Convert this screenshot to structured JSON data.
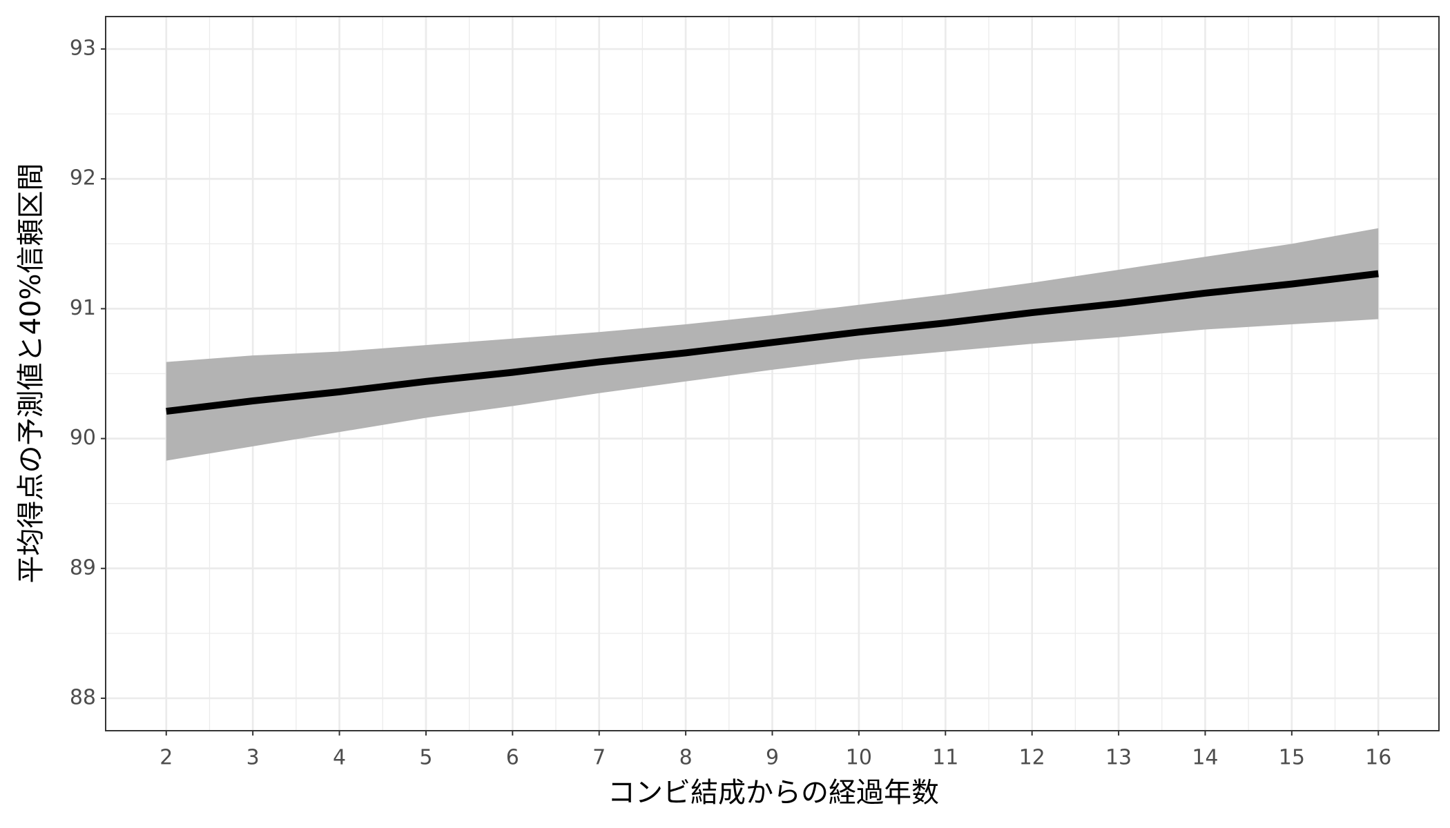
{
  "chart_data": {
    "type": "line",
    "x_label": "コンビ結成からの経過年数",
    "y_label": "平均得点の予測値と40%信頼区間",
    "x": [
      2,
      3,
      4,
      5,
      6,
      7,
      8,
      9,
      10,
      11,
      12,
      13,
      14,
      15,
      16
    ],
    "series": [
      {
        "name": "fit",
        "color": "#000000",
        "values": [
          90.21,
          90.29,
          90.36,
          90.44,
          90.51,
          90.59,
          90.66,
          90.74,
          90.82,
          90.89,
          90.97,
          91.04,
          91.12,
          91.19,
          91.27
        ]
      },
      {
        "name": "lower",
        "color": "#b3b3b3",
        "values": [
          89.83,
          89.94,
          90.05,
          90.16,
          90.25,
          90.35,
          90.44,
          90.53,
          90.61,
          90.67,
          90.73,
          90.78,
          90.84,
          90.88,
          90.92
        ]
      },
      {
        "name": "upper",
        "color": "#b3b3b3",
        "values": [
          90.59,
          90.64,
          90.67,
          90.72,
          90.77,
          90.82,
          90.88,
          90.95,
          91.03,
          91.11,
          91.2,
          91.3,
          91.4,
          91.5,
          91.62
        ]
      }
    ],
    "xlim": [
      1.3,
      16.7
    ],
    "xticks": [
      2,
      3,
      4,
      5,
      6,
      7,
      8,
      9,
      10,
      11,
      12,
      13,
      14,
      15,
      16
    ],
    "ylim": [
      87.75,
      93.25
    ],
    "yticks": [
      88,
      89,
      90,
      91,
      92,
      93
    ],
    "grid": true,
    "minor_grid": true
  }
}
